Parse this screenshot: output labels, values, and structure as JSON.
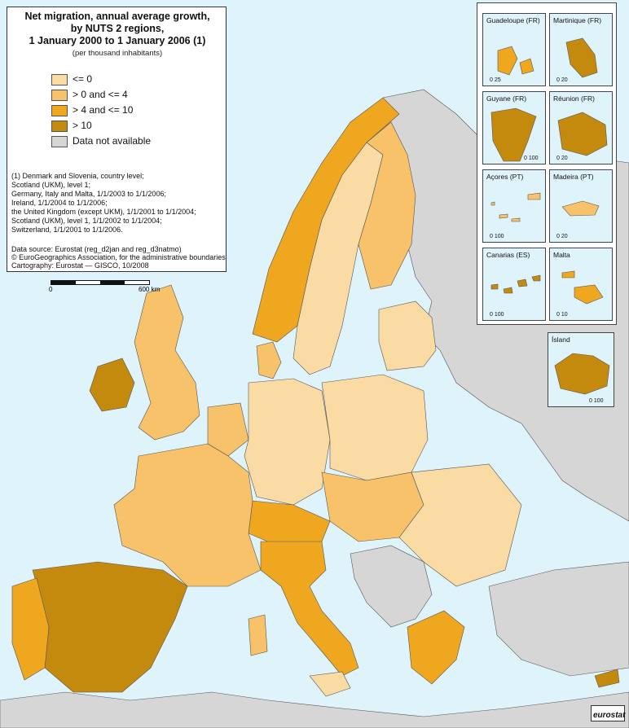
{
  "title": {
    "line1": "Net migration, annual average growth,",
    "line2": "by NUTS 2 regions,",
    "line3": "1 January 2000 to 1 January 2006 (1)",
    "subtitle": "(per thousand inhabitants)"
  },
  "legend": [
    {
      "label": "<= 0",
      "color": "#fbdba4"
    },
    {
      "label": "> 0 and <= 4",
      "color": "#f7c26a"
    },
    {
      "label": "> 4 and <= 10",
      "color": "#eea71f"
    },
    {
      "label": "> 10",
      "color": "#c48a0e"
    },
    {
      "label": "Data not available",
      "color": "#d6d6d6"
    }
  ],
  "notes": [
    "(1) Denmark and Slovenia, country level;",
    "Scotland (UKM), level 1;",
    "Germany, Italy and Malta, 1/1/2003 to 1/1/2006;",
    "Ireland, 1/1/2004 to 1/1/2006;",
    "the United Kingdom (except UKM), 1/1/2001 to 1/1/2004;",
    "Scotland (UKM), level 1, 1/1/2002 to 1/1/2004;",
    "Switzerland, 1/1/2001 to 1/1/2006."
  ],
  "source": [
    "Data source: Eurostat (reg_d2jan and reg_d3natmo)",
    "© EuroGeographics Association, for the administrative boundaries",
    "Cartography: Eurostat — GISCO, 10/2008"
  ],
  "scalebar": {
    "start": "0",
    "end": "600 km"
  },
  "insets": [
    {
      "key": "guadeloupe",
      "label": "Guadeloupe (FR)",
      "scale": "0  25"
    },
    {
      "key": "martinique",
      "label": "Martinique (FR)",
      "scale": "0  20"
    },
    {
      "key": "guyane",
      "label": "Guyane (FR)",
      "scale": "0  100"
    },
    {
      "key": "reunion",
      "label": "Réunion (FR)",
      "scale": "0  20"
    },
    {
      "key": "acores",
      "label": "Açores (PT)",
      "scale": "0  100"
    },
    {
      "key": "madeira",
      "label": "Madeira (PT)",
      "scale": "0  20"
    },
    {
      "key": "canarias",
      "label": "Canarias (ES)",
      "scale": "0  100"
    },
    {
      "key": "malta",
      "label": "Malta",
      "scale": "0  10"
    },
    {
      "key": "island",
      "label": "Ísland",
      "scale": "0  100"
    }
  ],
  "logo": "eurostat",
  "colors": {
    "sea": "#dff3fa",
    "nodata": "#d6d6d6",
    "border": "#444444"
  }
}
